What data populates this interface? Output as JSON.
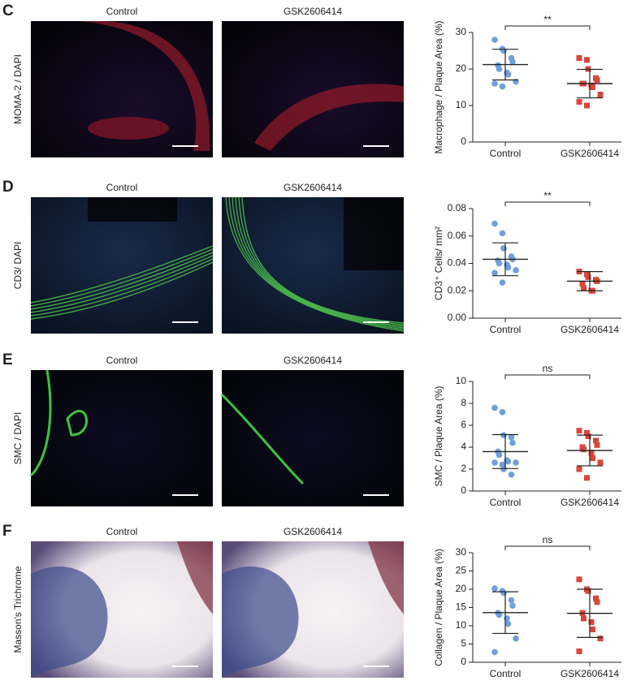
{
  "panels": [
    {
      "letter": "C",
      "stain": "MOMA-2 / DAPI",
      "image_titles": [
        "Control",
        "GSK2606414"
      ]
    },
    {
      "letter": "D",
      "stain": "CD3/ DAPI",
      "image_titles": [
        "Control",
        "GSK2606414"
      ]
    },
    {
      "letter": "E",
      "stain": "SMC / DAPI",
      "image_titles": [
        "Control",
        "GSK2606414"
      ]
    },
    {
      "letter": "F",
      "stain": "Masson's Trichrome",
      "image_titles": [
        "Control",
        "GSK2606414"
      ]
    }
  ],
  "chart_data": [
    {
      "type": "scatter",
      "y_label": "Macrophage / Plaque Area (%)",
      "categories": [
        "Control",
        "GSK2606414"
      ],
      "annotation": "**",
      "ylim": [
        0,
        30
      ],
      "yticks": [
        0,
        10,
        20,
        30
      ],
      "series": [
        {
          "color": "#6f9fdc",
          "marker": "circle",
          "values": [
            28,
            25.5,
            25,
            23,
            22,
            21,
            20,
            19,
            18.5,
            16.5,
            16,
            15.2
          ],
          "mean": 21.2,
          "sd": 4.2
        },
        {
          "color": "#d9463b",
          "marker": "square",
          "values": [
            23,
            22.5,
            20,
            17.5,
            17,
            16,
            16,
            15.5,
            15,
            13,
            11,
            10
          ],
          "mean": 16,
          "sd": 3.9
        }
      ]
    },
    {
      "type": "scatter",
      "y_label": "CD3⁺ Cells/ mm²",
      "categories": [
        "Control",
        "GSK2606414"
      ],
      "annotation": "**",
      "ylim": [
        0,
        0.08
      ],
      "yticks": [
        {
          "value": 0,
          "label": "0.00"
        },
        {
          "value": 0.02,
          "label": "0.02"
        },
        {
          "value": 0.04,
          "label": "0.04"
        },
        {
          "value": 0.06,
          "label": "0.06"
        },
        {
          "value": 0.08,
          "label": "0.08"
        }
      ],
      "series": [
        {
          "color": "#6f9fdc",
          "marker": "circle",
          "values": [
            0.069,
            0.062,
            0.051,
            0.045,
            0.043,
            0.042,
            0.04,
            0.039,
            0.037,
            0.035,
            0.033,
            0.026
          ],
          "mean": 0.043,
          "sd": 0.012
        },
        {
          "color": "#d9463b",
          "marker": "square",
          "values": [
            0.034,
            0.032,
            0.03,
            0.028,
            0.027,
            0.025,
            0.022,
            0.02,
            0.02
          ],
          "mean": 0.027,
          "sd": 0.007
        }
      ]
    },
    {
      "type": "scatter",
      "y_label": "SMC / Plaque Area (%)",
      "categories": [
        "Control",
        "GSK2606414"
      ],
      "annotation": "ns",
      "ylim": [
        0,
        10
      ],
      "yticks": [
        0,
        2,
        4,
        6,
        8,
        10
      ],
      "series": [
        {
          "color": "#6f9fdc",
          "marker": "circle",
          "values": [
            7.6,
            7.2,
            5.1,
            4.9,
            4.4,
            3.6,
            3.3,
            2.8,
            2.7,
            2.6,
            2.6,
            2.4,
            2,
            1.5
          ],
          "mean": 3.6,
          "sd": 1.55
        },
        {
          "color": "#d9463b",
          "marker": "square",
          "values": [
            5.5,
            5.3,
            5,
            4.6,
            4.2,
            4,
            3.8,
            3.5,
            3,
            2.6,
            2,
            1.2
          ],
          "mean": 3.7,
          "sd": 1.4
        }
      ]
    },
    {
      "type": "scatter",
      "y_label": "Collagen / Plaque Area (%)",
      "categories": [
        "Control",
        "GSK2606414"
      ],
      "annotation": "ns",
      "ylim": [
        0,
        30
      ],
      "yticks": [
        0,
        5,
        10,
        15,
        20,
        25,
        30
      ],
      "series": [
        {
          "color": "#6f9fdc",
          "marker": "circle",
          "values": [
            20.2,
            19.5,
            19,
            17,
            15.5,
            13.5,
            13,
            12,
            10.5,
            6.5,
            2.8
          ],
          "mean": 13.6,
          "sd": 5.7
        },
        {
          "color": "#d9463b",
          "marker": "square",
          "values": [
            22.7,
            20,
            19.5,
            17.5,
            16.5,
            13.5,
            12,
            11,
            9,
            6.5,
            3
          ],
          "mean": 13.4,
          "sd": 6.6
        }
      ]
    }
  ]
}
